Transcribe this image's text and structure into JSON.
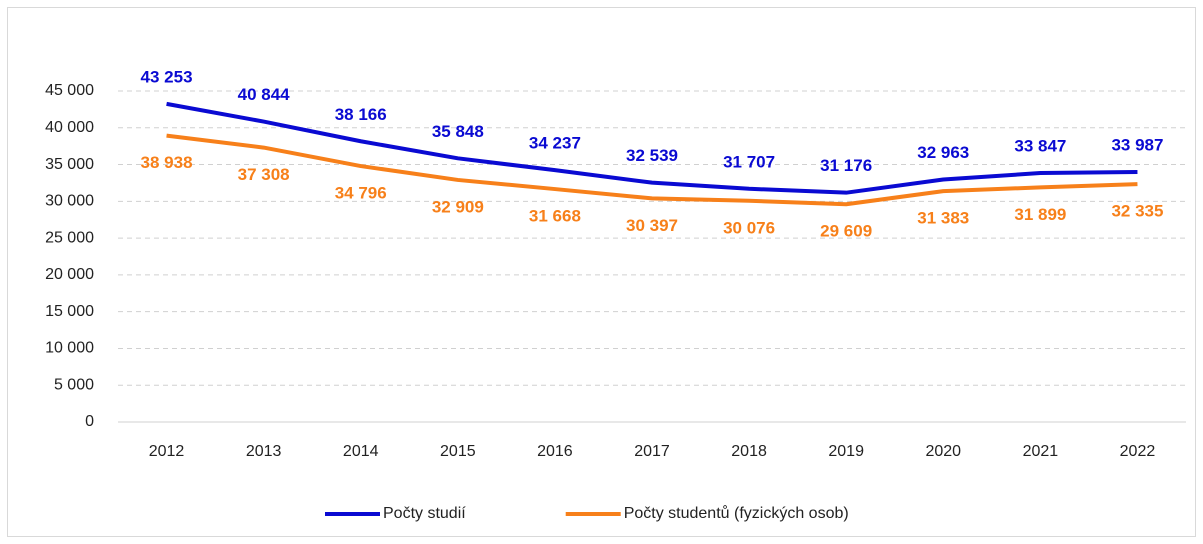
{
  "chart_data": {
    "type": "line",
    "categories": [
      "2012",
      "2013",
      "2014",
      "2015",
      "2016",
      "2017",
      "2018",
      "2019",
      "2020",
      "2021",
      "2022"
    ],
    "series": [
      {
        "name": "Počty studií",
        "color": "#0a0ad2",
        "values": [
          43253,
          40844,
          38166,
          35848,
          34237,
          32539,
          31707,
          31176,
          32963,
          33847,
          33987
        ],
        "value_labels": [
          "43 253",
          "40 844",
          "38 166",
          "35 848",
          "34 237",
          "32 539",
          "31 707",
          "31 176",
          "32 963",
          "33 847",
          "33 987"
        ]
      },
      {
        "name": "Počty studentů (fyzických osob)",
        "color": "#f7801a",
        "values": [
          38938,
          37308,
          34796,
          32909,
          31668,
          30397,
          30076,
          29609,
          31383,
          31899,
          32335
        ],
        "value_labels": [
          "38 938",
          "37 308",
          "34 796",
          "32 909",
          "31 668",
          "30 397",
          "30 076",
          "29 609",
          "31 383",
          "31 899",
          "32 335"
        ]
      }
    ],
    "ylim": [
      0,
      45000
    ],
    "yticks": [
      0,
      {
        "value": 5000,
        "label": "5 000"
      },
      {
        "value": 10000,
        "label": "10 000"
      },
      {
        "value": 15000,
        "label": "15 000"
      },
      {
        "value": 20000,
        "label": "20 000"
      },
      {
        "value": 25000,
        "label": "25 000"
      },
      {
        "value": 30000,
        "label": "30 000"
      },
      {
        "value": 35000,
        "label": "35 000"
      },
      {
        "value": 40000,
        "label": "40 000"
      },
      {
        "value": 45000,
        "label": "45 000"
      }
    ],
    "grid": true,
    "legend": "bottom"
  }
}
